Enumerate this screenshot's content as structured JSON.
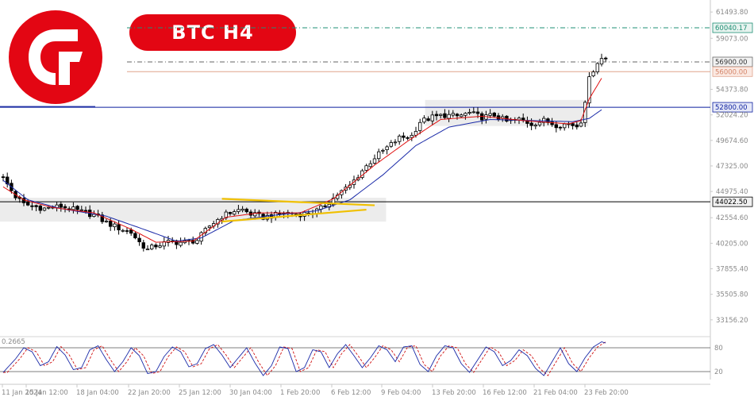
{
  "header": {
    "title": "BTC  H4"
  },
  "colors": {
    "brand_red": "#e30613",
    "candle": "#000000",
    "ma_fast": "#e01010",
    "ma_slow": "#1a2aa8",
    "support_line": "#0b1e9e",
    "level_line": "#000000",
    "target_line": "#1f8f74",
    "resistance_line": "#e0a48c",
    "triangle": "#f0c000",
    "zone": "#ececec"
  },
  "chart_data": [
    {
      "type": "candlestick",
      "instrument": "BTC",
      "timeframe": "H4",
      "ylim": [
        31900,
        62600
      ],
      "y_ticks": [
        "61493.80",
        "59073.00",
        "54373.80",
        "52024.20",
        "49674.60",
        "47325.00",
        "44975.40",
        "42554.60",
        "40205.00",
        "37855.40",
        "35505.80",
        "33156.20"
      ],
      "x_ticks": [
        "11 Jan 2024",
        "15 Jan 12:00",
        "18 Jan 04:00",
        "22 Jan 20:00",
        "25 Jan 12:00",
        "30 Jan 04:00",
        "1 Feb 20:00",
        "6 Feb 12:00",
        "9 Feb 04:00",
        "13 Feb 20:00",
        "16 Feb 12:00",
        "21 Feb 04:00",
        "23 Feb 20:00"
      ],
      "horizontal_levels": [
        {
          "name": "target",
          "value": 60040.17,
          "label": "60040.17",
          "style": "dash-dot"
        },
        {
          "name": "upper",
          "value": 56900.0,
          "label": "56900.00",
          "style": "dash-dot"
        },
        {
          "name": "resistance",
          "value": 56000.0,
          "label": "56000.00",
          "style": "solid"
        },
        {
          "name": "support",
          "value": 52800.0,
          "label": "52800.00",
          "style": "solid"
        },
        {
          "name": "base",
          "value": 44022.5,
          "label": "44022.50",
          "style": "solid"
        }
      ],
      "close_path": [
        [
          0,
          46200
        ],
        [
          3,
          44500
        ],
        [
          5,
          43800
        ],
        [
          10,
          43400
        ],
        [
          14,
          43600
        ],
        [
          18,
          43200
        ],
        [
          22,
          42800
        ],
        [
          25,
          42100
        ],
        [
          28,
          41600
        ],
        [
          31,
          41200
        ],
        [
          33,
          40300
        ],
        [
          35,
          39600
        ],
        [
          37,
          40000
        ],
        [
          40,
          40300
        ],
        [
          44,
          40300
        ],
        [
          47,
          40500
        ],
        [
          50,
          41800
        ],
        [
          53,
          42700
        ],
        [
          56,
          43200
        ],
        [
          58,
          43300
        ],
        [
          60,
          42900
        ],
        [
          63,
          42600
        ],
        [
          66,
          42800
        ],
        [
          69,
          43000
        ],
        [
          72,
          42900
        ],
        [
          75,
          43000
        ],
        [
          77,
          43400
        ],
        [
          79,
          44000
        ],
        [
          81,
          44700
        ],
        [
          84,
          45500
        ],
        [
          87,
          46900
        ],
        [
          90,
          48100
        ],
        [
          93,
          49000
        ],
        [
          96,
          49900
        ],
        [
          99,
          50100
        ],
        [
          101,
          51400
        ],
        [
          104,
          51800
        ],
        [
          107,
          52000
        ],
        [
          110,
          51900
        ],
        [
          113,
          52200
        ],
        [
          116,
          51800
        ],
        [
          119,
          52000
        ],
        [
          122,
          51400
        ],
        [
          125,
          51600
        ],
        [
          128,
          51200
        ],
        [
          131,
          51500
        ],
        [
          134,
          51100
        ],
        [
          137,
          51200
        ],
        [
          139,
          51000
        ],
        [
          140,
          51500
        ],
        [
          141,
          53400
        ],
        [
          142,
          55300
        ],
        [
          143,
          56200
        ],
        [
          144,
          56900
        ],
        [
          145,
          57200
        ]
      ],
      "ma_fast_path": [
        [
          0,
          45400
        ],
        [
          5,
          44200
        ],
        [
          12,
          43500
        ],
        [
          22,
          43000
        ],
        [
          31,
          41500
        ],
        [
          37,
          40300
        ],
        [
          46,
          40400
        ],
        [
          54,
          42600
        ],
        [
          62,
          43000
        ],
        [
          72,
          43000
        ],
        [
          80,
          44300
        ],
        [
          90,
          47400
        ],
        [
          98,
          49600
        ],
        [
          106,
          51600
        ],
        [
          116,
          51900
        ],
        [
          126,
          51500
        ],
        [
          137,
          51200
        ],
        [
          140,
          51500
        ],
        [
          142,
          53500
        ],
        [
          145,
          55400
        ]
      ],
      "ma_slow_path": [
        [
          0,
          46000
        ],
        [
          6,
          44200
        ],
        [
          14,
          43400
        ],
        [
          25,
          42700
        ],
        [
          34,
          41500
        ],
        [
          42,
          40400
        ],
        [
          48,
          40700
        ],
        [
          56,
          42300
        ],
        [
          66,
          42800
        ],
        [
          76,
          43200
        ],
        [
          84,
          44200
        ],
        [
          92,
          46500
        ],
        [
          100,
          49200
        ],
        [
          108,
          50900
        ],
        [
          118,
          51600
        ],
        [
          128,
          51500
        ],
        [
          138,
          51400
        ],
        [
          142,
          51700
        ],
        [
          145,
          52500
        ]
      ],
      "zones": [
        {
          "from_candle": 0,
          "to_candle": 92,
          "low": 42200,
          "high": 44400
        },
        {
          "from_candle": 103,
          "to_candle": 141,
          "low": 51000,
          "high": 53400
        }
      ],
      "triangle": {
        "upper": [
          [
            53,
            44300
          ],
          [
            90,
            43700
          ]
        ],
        "lower": [
          [
            53,
            42200
          ],
          [
            88,
            43300
          ]
        ]
      }
    },
    {
      "type": "line",
      "name": "stochastic",
      "ylim": [
        0,
        100
      ],
      "levels": [
        {
          "value": 80,
          "label": "80"
        },
        {
          "value": 20,
          "label": "20"
        }
      ],
      "corner_label": "0.2665",
      "main_path": [
        [
          0,
          18
        ],
        [
          3,
          52
        ],
        [
          5,
          80
        ],
        [
          7,
          70
        ],
        [
          9,
          35
        ],
        [
          11,
          45
        ],
        [
          13,
          83
        ],
        [
          15,
          62
        ],
        [
          17,
          25
        ],
        [
          19,
          30
        ],
        [
          21,
          75
        ],
        [
          23,
          85
        ],
        [
          25,
          50
        ],
        [
          27,
          20
        ],
        [
          29,
          45
        ],
        [
          31,
          80
        ],
        [
          33,
          60
        ],
        [
          35,
          15
        ],
        [
          37,
          20
        ],
        [
          39,
          58
        ],
        [
          41,
          82
        ],
        [
          43,
          70
        ],
        [
          45,
          32
        ],
        [
          47,
          40
        ],
        [
          49,
          78
        ],
        [
          51,
          88
        ],
        [
          53,
          62
        ],
        [
          55,
          30
        ],
        [
          57,
          55
        ],
        [
          59,
          80
        ],
        [
          61,
          42
        ],
        [
          63,
          10
        ],
        [
          65,
          35
        ],
        [
          67,
          82
        ],
        [
          69,
          78
        ],
        [
          71,
          20
        ],
        [
          73,
          30
        ],
        [
          75,
          75
        ],
        [
          77,
          70
        ],
        [
          79,
          30
        ],
        [
          81,
          65
        ],
        [
          83,
          88
        ],
        [
          85,
          60
        ],
        [
          87,
          30
        ],
        [
          89,
          55
        ],
        [
          91,
          85
        ],
        [
          93,
          75
        ],
        [
          95,
          45
        ],
        [
          97,
          82
        ],
        [
          99,
          85
        ],
        [
          101,
          38
        ],
        [
          103,
          20
        ],
        [
          105,
          60
        ],
        [
          107,
          85
        ],
        [
          109,
          80
        ],
        [
          111,
          40
        ],
        [
          113,
          18
        ],
        [
          115,
          50
        ],
        [
          117,
          82
        ],
        [
          119,
          70
        ],
        [
          121,
          35
        ],
        [
          123,
          48
        ],
        [
          125,
          75
        ],
        [
          127,
          60
        ],
        [
          129,
          28
        ],
        [
          131,
          10
        ],
        [
          133,
          45
        ],
        [
          135,
          80
        ],
        [
          137,
          40
        ],
        [
          139,
          20
        ],
        [
          141,
          55
        ],
        [
          143,
          82
        ],
        [
          145,
          95
        ],
        [
          146,
          92
        ]
      ],
      "signal_offset": 1
    }
  ]
}
